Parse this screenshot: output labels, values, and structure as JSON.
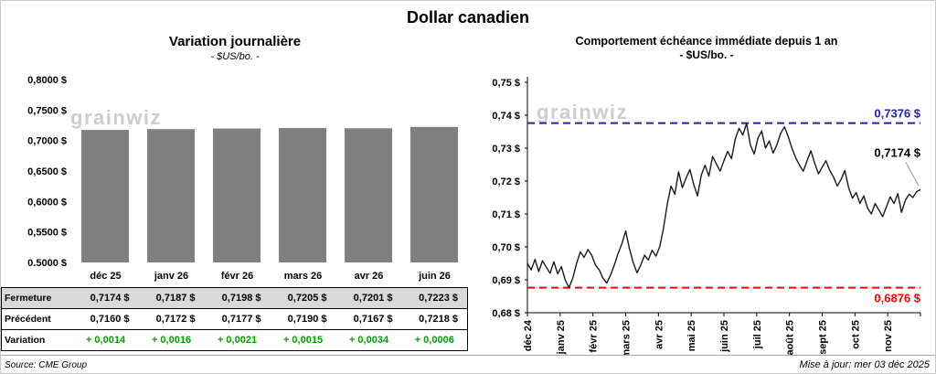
{
  "page_title": "Dollar canadien",
  "watermark": "grainwiz",
  "left_panel": {
    "title": "Variation journalière",
    "subtitle": "- $US/bo. -"
  },
  "right_panel": {
    "title": "Comportement échéance immédiate depuis 1 an",
    "subtitle": "- $US/bo. -"
  },
  "table": {
    "categories": [
      "déc 25",
      "janv 26",
      "févr 26",
      "mars 26",
      "avr 26",
      "juin 26"
    ],
    "rows": [
      {
        "label": "Fermeture",
        "style": "gray",
        "values": [
          "0,7174 $",
          "0,7187 $",
          "0,7198 $",
          "0,7205 $",
          "0,7201 $",
          "0,7223 $"
        ]
      },
      {
        "label": "Précédent",
        "style": "white",
        "values": [
          "0,7160 $",
          "0,7172 $",
          "0,7177 $",
          "0,7190 $",
          "0,7167 $",
          "0,7218 $"
        ]
      },
      {
        "label": "Variation",
        "style": "green",
        "values": [
          "+ 0,0014",
          "+ 0,0016",
          "+ 0,0021",
          "+ 0,0015",
          "+ 0,0034",
          "+ 0,0006"
        ]
      }
    ]
  },
  "footer": {
    "source": "Source: CME Group",
    "updated": "Mise à jour: mer 03 déc 2025"
  },
  "chart_data": [
    {
      "type": "bar",
      "title": "Variation journalière",
      "subtitle": "- $US/bo. -",
      "categories": [
        "déc 25",
        "janv 26",
        "févr 26",
        "mars 26",
        "avr 26",
        "juin 26"
      ],
      "values": [
        0.7174,
        0.7187,
        0.7198,
        0.7205,
        0.7201,
        0.7223
      ],
      "ylim": [
        0.5,
        0.8
      ],
      "yticks": [
        {
          "v": 0.8,
          "label": "0,8000 $"
        },
        {
          "v": 0.75,
          "label": "0,7500 $"
        },
        {
          "v": 0.7,
          "label": "0,7000 $"
        },
        {
          "v": 0.65,
          "label": "0,6500 $"
        },
        {
          "v": 0.6,
          "label": "0,6000 $"
        },
        {
          "v": 0.55,
          "label": "0,5500 $"
        },
        {
          "v": 0.5,
          "label": "0,5000 $"
        }
      ],
      "bar_color": "#808080",
      "grid": false,
      "legend": false
    },
    {
      "type": "line",
      "title": "Comportement échéance immédiate depuis 1 an",
      "subtitle": "- $US/bo. -",
      "x_labels": [
        "déc 24",
        "janv 25",
        "févr 25",
        "mars 25",
        "avr 25",
        "mai 25",
        "juin 25",
        "juil 25",
        "août 25",
        "sept 25",
        "oct 25",
        "nov 25"
      ],
      "ylim": [
        0.68,
        0.75
      ],
      "yticks": [
        {
          "v": 0.75,
          "label": "0,75 $"
        },
        {
          "v": 0.74,
          "label": "0,74 $"
        },
        {
          "v": 0.73,
          "label": "0,73 $"
        },
        {
          "v": 0.72,
          "label": "0,72 $"
        },
        {
          "v": 0.71,
          "label": "0,71 $"
        },
        {
          "v": 0.7,
          "label": "0,70 $"
        },
        {
          "v": 0.69,
          "label": "0,69 $"
        },
        {
          "v": 0.68,
          "label": "0,68 $"
        }
      ],
      "high_line": {
        "value": 0.7376,
        "label": "0,7376 $",
        "color": "#2020c0"
      },
      "low_line": {
        "value": 0.6876,
        "label": "0,6876 $",
        "color": "#ff0000"
      },
      "last_point": {
        "value": 0.7174,
        "label": "0,7174 $"
      },
      "line_color": "#1a1a1a",
      "grid": false,
      "legend": false,
      "values": [
        0.695,
        0.693,
        0.6962,
        0.6925,
        0.6958,
        0.6938,
        0.692,
        0.6955,
        0.6918,
        0.694,
        0.69,
        0.6876,
        0.6905,
        0.695,
        0.6985,
        0.6968,
        0.6992,
        0.6975,
        0.6945,
        0.693,
        0.6905,
        0.689,
        0.6915,
        0.6945,
        0.698,
        0.701,
        0.7048,
        0.6995,
        0.6952,
        0.6921,
        0.6945,
        0.6975,
        0.696,
        0.699,
        0.6972,
        0.7,
        0.7055,
        0.713,
        0.7185,
        0.716,
        0.7228,
        0.718,
        0.721,
        0.7235,
        0.719,
        0.7155,
        0.7218,
        0.7248,
        0.7215,
        0.7275,
        0.7252,
        0.723,
        0.7262,
        0.729,
        0.7268,
        0.7328,
        0.736,
        0.734,
        0.7375,
        0.731,
        0.7282,
        0.733,
        0.7352,
        0.73,
        0.7322,
        0.7285,
        0.731,
        0.7345,
        0.7365,
        0.7335,
        0.73,
        0.727,
        0.7248,
        0.723,
        0.7262,
        0.7292,
        0.7255,
        0.7222,
        0.7242,
        0.7262,
        0.7232,
        0.7212,
        0.7185,
        0.7205,
        0.7232,
        0.718,
        0.7148,
        0.7165,
        0.7132,
        0.7155,
        0.7118,
        0.71,
        0.7132,
        0.7112,
        0.7092,
        0.7122,
        0.7152,
        0.7132,
        0.7162,
        0.7105,
        0.7142,
        0.716,
        0.715,
        0.7168,
        0.7174
      ]
    }
  ]
}
